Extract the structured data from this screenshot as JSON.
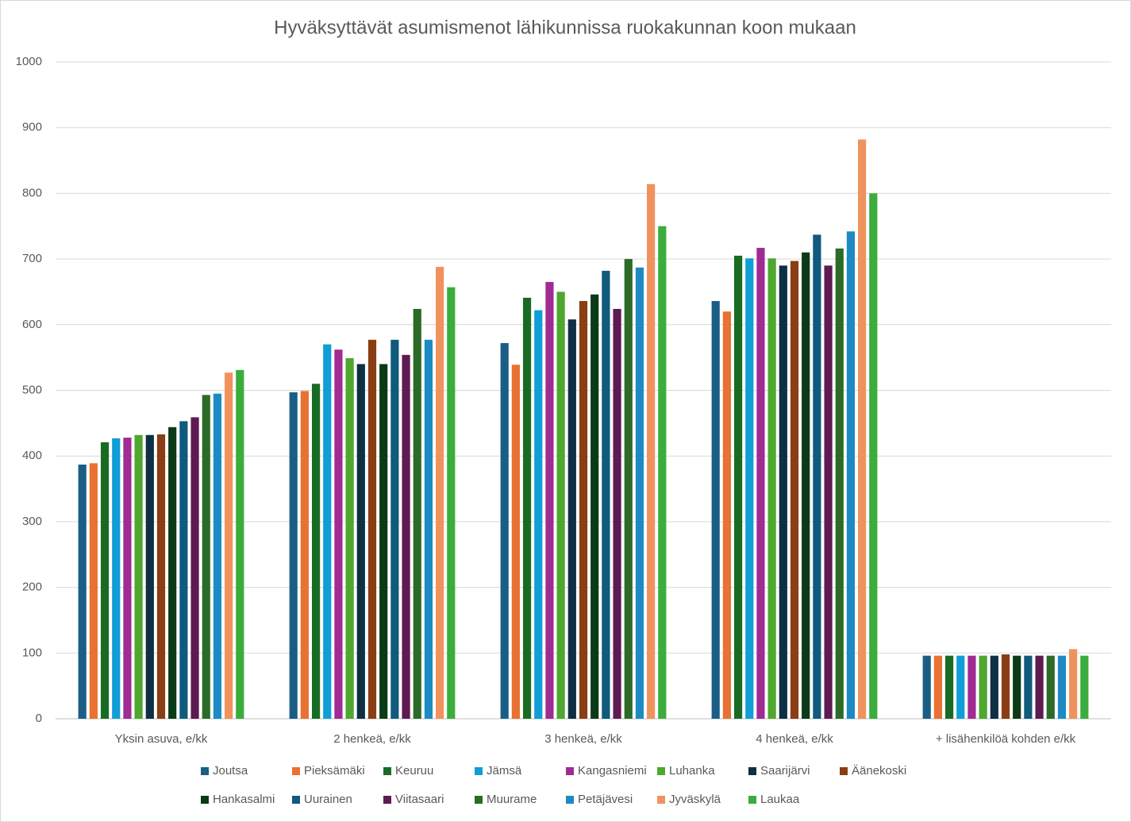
{
  "chart_data": {
    "type": "bar",
    "title": "Hyväksyttävät asumismenot lähikunnissa ruokakunnan koon mukaan",
    "categories": [
      "Yksin asuva, e/kk",
      "2 henkeä, e/kk",
      "3 henkeä, e/kk",
      "4 henkeä, e/kk",
      "+ lisähenkilöä kohden e/kk"
    ],
    "series": [
      {
        "name": "Joutsa",
        "color": "#1b5e85",
        "values": [
          387,
          497,
          572,
          636,
          96
        ]
      },
      {
        "name": "Pieksämäki",
        "color": "#e97132",
        "values": [
          389,
          499,
          539,
          620,
          96
        ]
      },
      {
        "name": "Keuruu",
        "color": "#196b24",
        "values": [
          421,
          510,
          641,
          705,
          96
        ]
      },
      {
        "name": "Jämsä",
        "color": "#0f9ed5",
        "values": [
          427,
          570,
          622,
          701,
          96
        ]
      },
      {
        "name": "Kangasniemi",
        "color": "#a02b93",
        "values": [
          428,
          562,
          665,
          717,
          96
        ]
      },
      {
        "name": "Luhanka",
        "color": "#4ea72e",
        "values": [
          432,
          549,
          650,
          701,
          96
        ]
      },
      {
        "name": "Saarijärvi",
        "color": "#0e2f44",
        "values": [
          432,
          540,
          608,
          690,
          96
        ]
      },
      {
        "name": "Äänekoski",
        "color": "#8b3d13",
        "values": [
          433,
          577,
          636,
          697,
          98
        ]
      },
      {
        "name": "Hankasalmi",
        "color": "#0b3a16",
        "values": [
          444,
          540,
          646,
          710,
          96
        ]
      },
      {
        "name": "Uurainen",
        "color": "#0f5a7d",
        "values": [
          453,
          577,
          682,
          737,
          96
        ]
      },
      {
        "name": "Viitasaari",
        "color": "#5e1a52",
        "values": [
          459,
          554,
          624,
          690,
          96
        ]
      },
      {
        "name": "Muurame",
        "color": "#2c6b27",
        "values": [
          493,
          624,
          700,
          716,
          96
        ]
      },
      {
        "name": "Petäjävesi",
        "color": "#1e8ac3",
        "values": [
          495,
          577,
          687,
          742,
          96
        ]
      },
      {
        "name": "Jyväskylä",
        "color": "#f0925e",
        "values": [
          527,
          688,
          814,
          882,
          106
        ]
      },
      {
        "name": "Laukaa",
        "color": "#3aad3d",
        "values": [
          531,
          657,
          750,
          800,
          96
        ]
      }
    ],
    "ylim": [
      0,
      1000
    ],
    "yticks": [
      0,
      100,
      200,
      300,
      400,
      500,
      600,
      700,
      800,
      900,
      1000
    ],
    "grid": true
  }
}
